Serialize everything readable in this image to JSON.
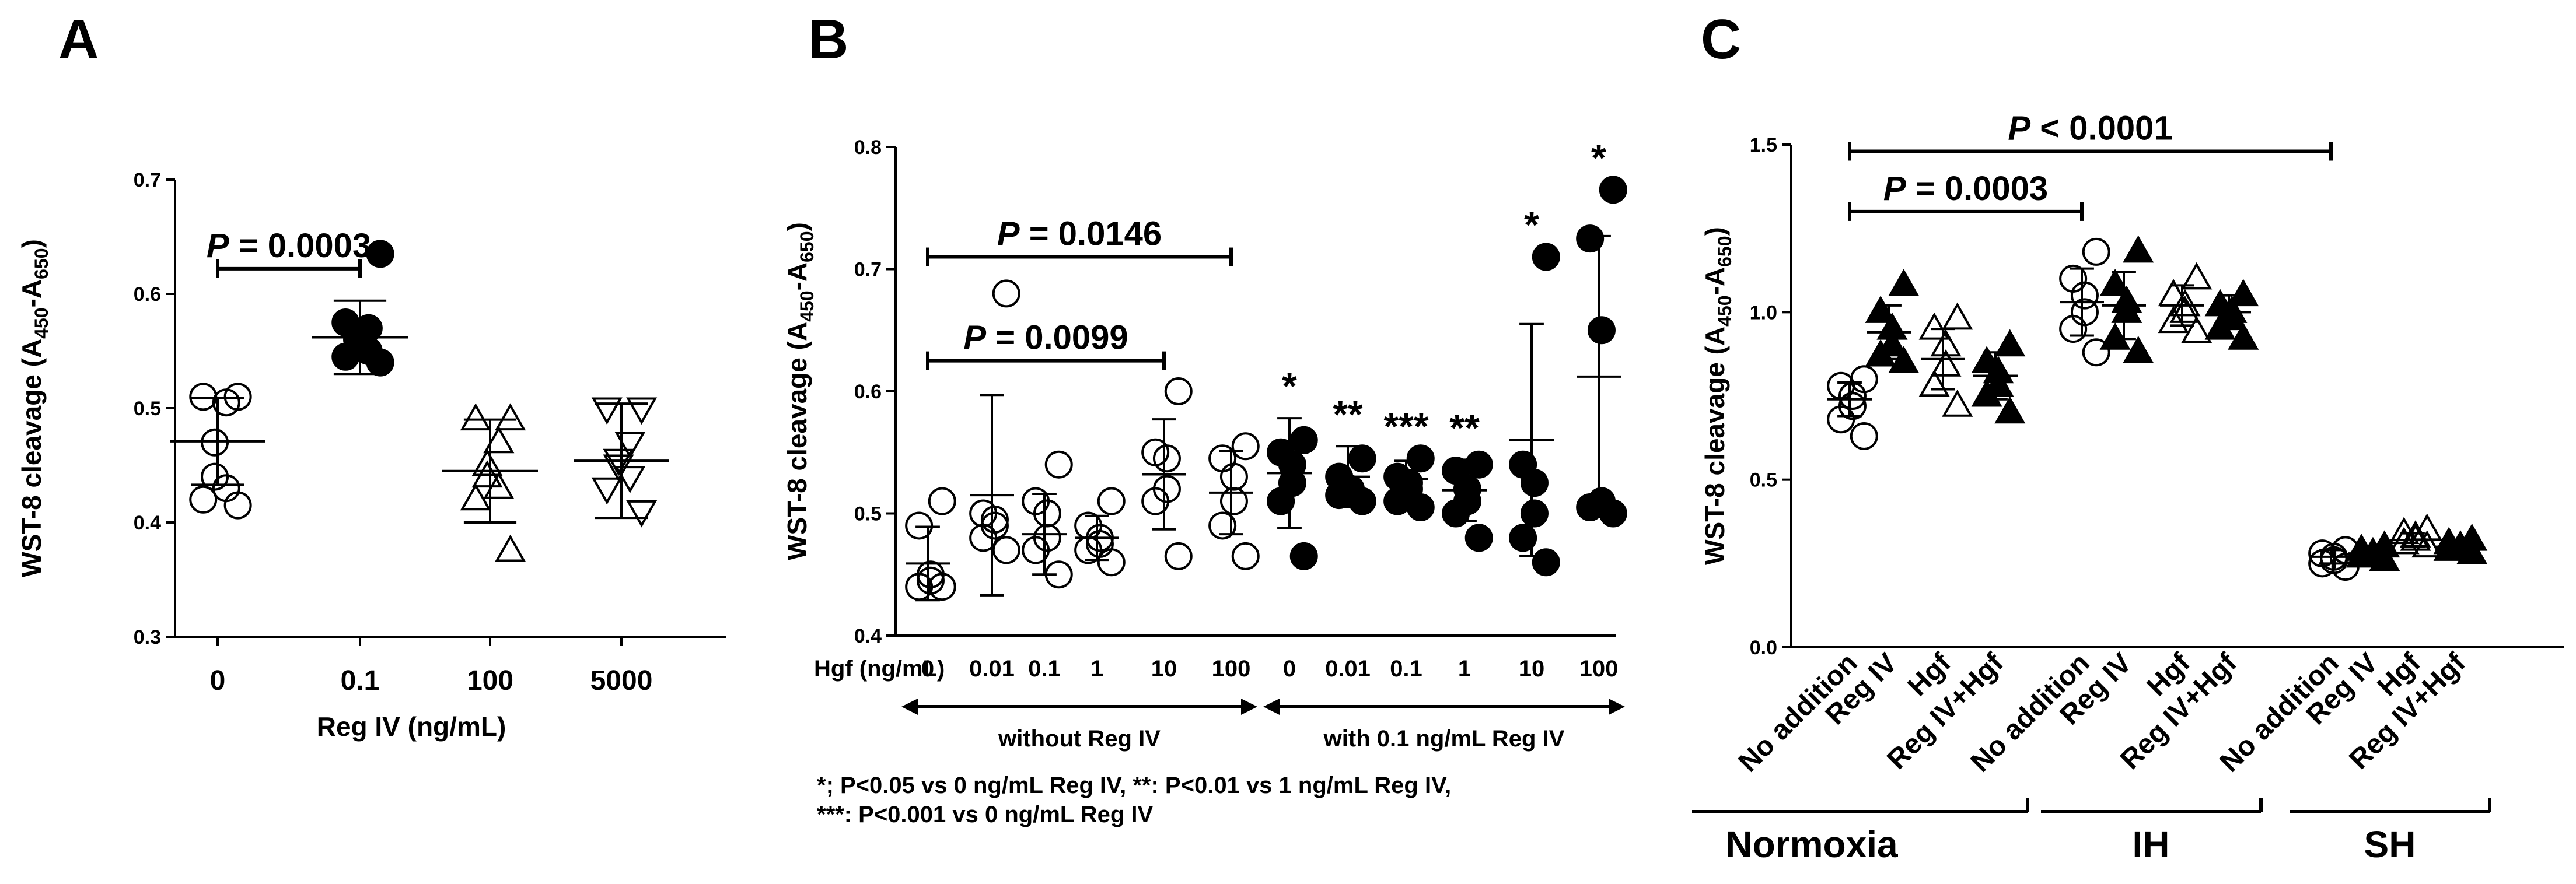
{
  "chart_data": [
    {
      "panel": "A",
      "type": "scatter",
      "ylabel_main": "WST-8 cleavage (A",
      "ylabel_sub1": "450",
      "ylabel_mid": "-A",
      "ylabel_sub2": "650",
      "ylabel_end": ")",
      "xlabel": "Reg IV (ng/mL)",
      "ylim": [
        0.3,
        0.7
      ],
      "yticks": [
        "0.3",
        "0.4",
        "0.5",
        "0.6",
        "0.7"
      ],
      "categories": [
        "0",
        "0.1",
        "100",
        "5000"
      ],
      "series": [
        {
          "name": "0",
          "marker": "circle-open",
          "values": [
            0.415,
            0.42,
            0.43,
            0.44,
            0.47,
            0.505,
            0.51,
            0.51
          ],
          "mean": 0.471,
          "sd": 0.038
        },
        {
          "name": "0.1",
          "marker": "circle-filled",
          "values": [
            0.54,
            0.545,
            0.55,
            0.56,
            0.565,
            0.57,
            0.575,
            0.635
          ],
          "mean": 0.562,
          "sd": 0.032
        },
        {
          "name": "100",
          "marker": "triangle-up-open",
          "values": [
            0.375,
            0.42,
            0.43,
            0.44,
            0.45,
            0.47,
            0.49,
            0.49
          ],
          "mean": 0.445,
          "sd": 0.045
        },
        {
          "name": "5000",
          "marker": "triangle-down-open",
          "values": [
            0.41,
            0.43,
            0.44,
            0.45,
            0.455,
            0.47,
            0.5,
            0.5
          ],
          "mean": 0.454,
          "sd": 0.05
        }
      ],
      "brackets": [
        {
          "from": 0,
          "to": 1,
          "y": 0.622,
          "label_pre": "P",
          "label_post": " = 0.0003"
        }
      ]
    },
    {
      "panel": "B",
      "type": "scatter",
      "ylabel_main": "WST-8 cleavage (A",
      "ylabel_sub1": "450",
      "ylabel_mid": "-A",
      "ylabel_sub2": "650",
      "ylabel_end": ")",
      "xlabel_prefix": "Hgf (ng/mL)",
      "ylim": [
        0.4,
        0.8
      ],
      "yticks": [
        "0.4",
        "0.5",
        "0.6",
        "0.7",
        "0.8"
      ],
      "categories": [
        "0",
        "0.01",
        "0.1",
        "1",
        "10",
        "100",
        "0",
        "0.01",
        "0.1",
        "1",
        "10",
        "100"
      ],
      "series": [
        {
          "name": "0",
          "marker": "circle-open",
          "values": [
            0.44,
            0.44,
            0.445,
            0.45,
            0.49,
            0.51
          ],
          "mean": 0.459,
          "sd": 0.03,
          "star": ""
        },
        {
          "name": "0.01",
          "marker": "circle-open",
          "values": [
            0.47,
            0.48,
            0.49,
            0.495,
            0.5,
            0.68
          ],
          "mean": 0.515,
          "sd": 0.082,
          "star": ""
        },
        {
          "name": "0.1",
          "marker": "circle-open",
          "values": [
            0.45,
            0.47,
            0.48,
            0.5,
            0.51,
            0.54
          ],
          "mean": 0.483,
          "sd": 0.033,
          "star": ""
        },
        {
          "name": "1",
          "marker": "circle-open",
          "values": [
            0.46,
            0.47,
            0.475,
            0.48,
            0.49,
            0.51
          ],
          "mean": 0.48,
          "sd": 0.018,
          "star": ""
        },
        {
          "name": "10",
          "marker": "circle-open",
          "values": [
            0.465,
            0.51,
            0.52,
            0.545,
            0.55,
            0.6
          ],
          "mean": 0.532,
          "sd": 0.045,
          "star": ""
        },
        {
          "name": "100",
          "marker": "circle-open",
          "values": [
            0.465,
            0.49,
            0.51,
            0.53,
            0.545,
            0.555
          ],
          "mean": 0.517,
          "sd": 0.034,
          "star": ""
        },
        {
          "name": "0",
          "marker": "circle-filled",
          "values": [
            0.465,
            0.51,
            0.525,
            0.54,
            0.55,
            0.56
          ],
          "mean": 0.533,
          "sd": 0.045,
          "star": "*"
        },
        {
          "name": "0.01",
          "marker": "circle-filled",
          "values": [
            0.51,
            0.515,
            0.52,
            0.52,
            0.53,
            0.545
          ],
          "mean": 0.53,
          "sd": 0.025,
          "star": "**"
        },
        {
          "name": "0.1",
          "marker": "circle-filled",
          "values": [
            0.505,
            0.51,
            0.52,
            0.525,
            0.53,
            0.545
          ],
          "mean": 0.528,
          "sd": 0.015,
          "star": "***"
        },
        {
          "name": "1",
          "marker": "circle-filled",
          "values": [
            0.48,
            0.5,
            0.51,
            0.52,
            0.535,
            0.54
          ],
          "mean": 0.519,
          "sd": 0.025,
          "star": "**"
        },
        {
          "name": "10",
          "marker": "circle-filled",
          "values": [
            0.46,
            0.48,
            0.5,
            0.525,
            0.54,
            0.71
          ],
          "mean": 0.56,
          "sd": 0.095,
          "star": "*"
        },
        {
          "name": "100",
          "marker": "circle-filled",
          "values": [
            0.5,
            0.505,
            0.51,
            0.65,
            0.725,
            0.765
          ],
          "mean": 0.612,
          "sd": 0.115,
          "star": "*"
        }
      ],
      "brackets": [
        {
          "from": 0,
          "to": 5,
          "y": 0.71,
          "label_pre": "P",
          "label_post": " = 0.0146"
        },
        {
          "from": 0,
          "to": 4,
          "y": 0.625,
          "label_pre": "P",
          "label_post": " = 0.0099"
        }
      ],
      "groups": [
        {
          "label": "without Reg IV",
          "from": 0,
          "to": 5
        },
        {
          "label": "with 0.1 ng/mL Reg IV",
          "from": 6,
          "to": 11
        }
      ],
      "footnote_line1": "*; P<0.05 vs 0 ng/mL Reg IV, **: P<0.01 vs 1 ng/mL Reg IV,",
      "footnote_line2": "***: P<0.001 vs 0 ng/mL Reg IV"
    },
    {
      "panel": "C",
      "type": "scatter",
      "ylabel_main": "WST-8 cleavage (A",
      "ylabel_sub1": "450",
      "ylabel_mid": "-A",
      "ylabel_sub2": "650",
      "ylabel_end": ")",
      "ylim": [
        0.0,
        1.5
      ],
      "yticks": [
        "0.0",
        "0.5",
        "1.0",
        "1.5"
      ],
      "categories": [
        "No addition",
        "Reg IV",
        "Hgf",
        "Reg IV+Hgf",
        "No addition",
        "Reg IV",
        "Hgf",
        "Reg IV+Hgf",
        "No addition",
        "Reg IV",
        "Hgf",
        "Reg IV+Hgf"
      ],
      "series": [
        {
          "name": "No addition",
          "marker": "circle-open",
          "values": [
            0.63,
            0.68,
            0.72,
            0.75,
            0.78,
            0.8
          ],
          "mean": 0.74,
          "sd": 0.05
        },
        {
          "name": "Reg IV",
          "marker": "triangle-up-filled",
          "values": [
            0.85,
            0.87,
            0.9,
            0.95,
            1.0,
            1.08
          ],
          "mean": 0.94,
          "sd": 0.08
        },
        {
          "name": "Hgf",
          "marker": "triangle-up-open",
          "values": [
            0.72,
            0.78,
            0.84,
            0.9,
            0.95,
            0.98
          ],
          "mean": 0.86,
          "sd": 0.09
        },
        {
          "name": "Reg IV+Hgf",
          "marker": "triangle-up-filled",
          "values": [
            0.7,
            0.75,
            0.78,
            0.82,
            0.85,
            0.9
          ],
          "mean": 0.81,
          "sd": 0.07
        },
        {
          "name": "No addition",
          "marker": "circle-open",
          "values": [
            0.88,
            0.95,
            1.0,
            1.05,
            1.1,
            1.18
          ],
          "mean": 1.03,
          "sd": 0.1
        },
        {
          "name": "Reg IV",
          "marker": "triangle-up-filled",
          "values": [
            0.88,
            0.92,
            1.0,
            1.03,
            1.08,
            1.18
          ],
          "mean": 1.02,
          "sd": 0.1
        },
        {
          "name": "Hgf",
          "marker": "triangle-up-open",
          "values": [
            0.94,
            0.97,
            1.0,
            1.02,
            1.05,
            1.1
          ],
          "mean": 1.02,
          "sd": 0.06
        },
        {
          "name": "Reg IV+Hgf",
          "marker": "triangle-up-filled",
          "values": [
            0.92,
            0.95,
            0.98,
            1.0,
            1.02,
            1.05
          ],
          "mean": 1.0,
          "sd": 0.05
        },
        {
          "name": "No addition",
          "marker": "circle-open",
          "values": [
            0.24,
            0.25,
            0.26,
            0.27,
            0.28,
            0.29
          ],
          "mean": 0.27,
          "sd": 0.02
        },
        {
          "name": "Reg IV",
          "marker": "triangle-up-filled",
          "values": [
            0.26,
            0.27,
            0.28,
            0.28,
            0.29,
            0.3
          ],
          "mean": 0.28,
          "sd": 0.015
        },
        {
          "name": "Hgf",
          "marker": "triangle-up-open",
          "values": [
            0.3,
            0.31,
            0.32,
            0.33,
            0.34,
            0.35
          ],
          "mean": 0.32,
          "sd": 0.02
        },
        {
          "name": "Reg IV+Hgf",
          "marker": "triangle-up-filled",
          "values": [
            0.28,
            0.29,
            0.3,
            0.3,
            0.31,
            0.32
          ],
          "mean": 0.3,
          "sd": 0.02
        }
      ],
      "brackets": [
        {
          "from": 0,
          "to": 8,
          "y": 1.48,
          "label_pre": "P",
          "label_post": " < 0.0001"
        },
        {
          "from": 0,
          "to": 4,
          "y": 1.3,
          "label_pre": "P",
          "label_post": " = 0.0003"
        }
      ],
      "groups": [
        {
          "label": "Normoxia",
          "from": 0,
          "to": 3
        },
        {
          "label": "IH",
          "from": 4,
          "to": 7
        },
        {
          "label": "SH",
          "from": 8,
          "to": 11
        }
      ]
    }
  ]
}
